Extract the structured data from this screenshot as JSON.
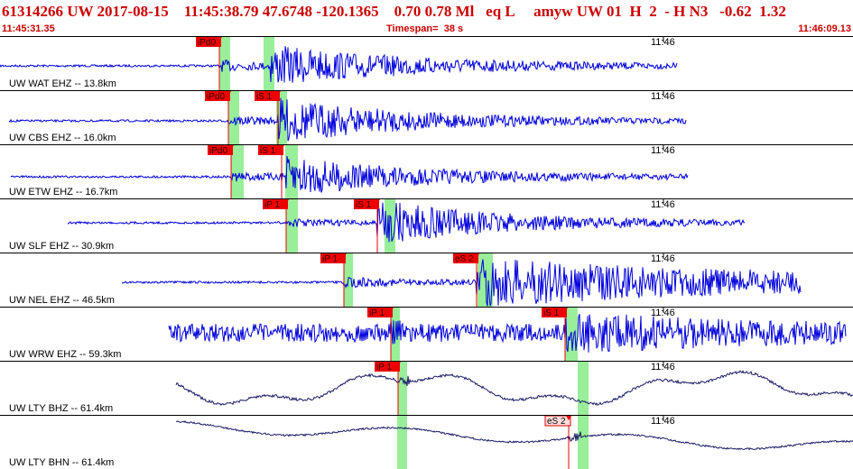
{
  "header": {
    "event_id": "61314266",
    "network": "UW",
    "date": "2017-08-15",
    "origin_time": "11:45:38.79",
    "latitude": "47.6748",
    "longitude": "-120.1365",
    "depth": "0.70",
    "magnitude": "0.78",
    "magnitude_type": "Ml",
    "event_type": "eq",
    "status": "L",
    "analyst": "amyw",
    "source": "UW",
    "version": "01",
    "gap_flag": "H",
    "field_2": "2",
    "dash": "-",
    "h_flag": "H",
    "n_field": "N3",
    "extra1": "-0.62",
    "extra2": "1.32",
    "start_time": "11:45:31.35",
    "timespan_label": "Timespan=",
    "timespan_value": "38 s",
    "end_time": "11:46:09.13"
  },
  "minute_label": "11:46",
  "colors": {
    "header_text": "#cc0000",
    "pick_box": "#ee0000",
    "trace": "#0000dd",
    "broadband_trace": "#1a1a66",
    "pick_window": "#99ee99"
  },
  "traces": [
    {
      "station": "UW WAT EHZ -- 13.8km",
      "picks": [
        "iPd0"
      ],
      "type": "short"
    },
    {
      "station": "UW CBS EHZ -- 16.0km",
      "picks": [
        "iPd0",
        "iS 1"
      ],
      "type": "short"
    },
    {
      "station": "UW ETW EHZ -- 16.7km",
      "picks": [
        "iPd0",
        "iS 1"
      ],
      "type": "short"
    },
    {
      "station": "UW SLF EHZ -- 30.9km",
      "picks": [
        "iP 1",
        "iS 1"
      ],
      "type": "short"
    },
    {
      "station": "UW NEL EHZ -- 46.5km",
      "picks": [
        "iP 1",
        "eS 2"
      ],
      "type": "short"
    },
    {
      "station": "UW WRW EHZ -- 59.3km",
      "picks": [
        "iP 1",
        "iS 1"
      ],
      "type": "short"
    },
    {
      "station": "UW LTY BHZ -- 61.4km",
      "picks": [
        "iP 1"
      ],
      "type": "broadband"
    },
    {
      "station": "UW LTY BHN -- 61.4km",
      "picks": [
        "eS 2"
      ],
      "type": "broadband"
    }
  ]
}
